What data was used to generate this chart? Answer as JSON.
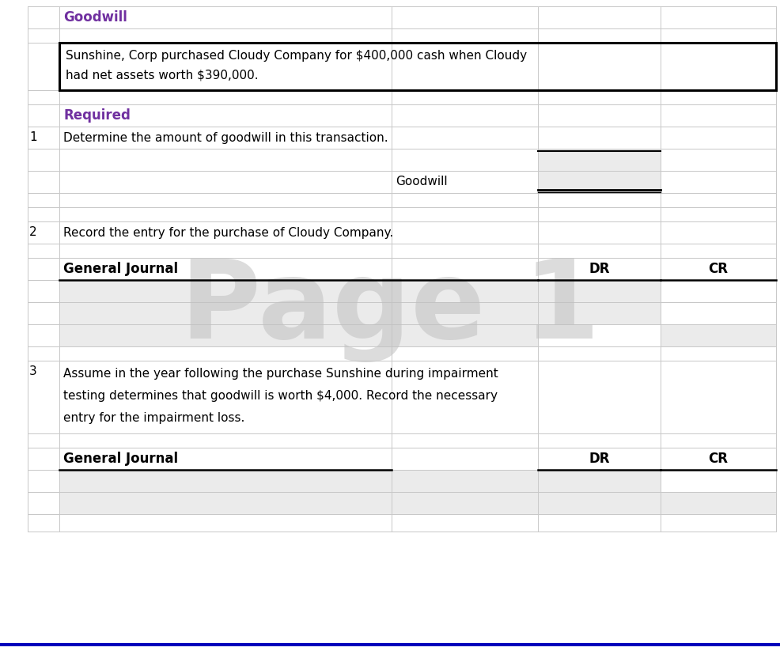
{
  "title": "Goodwill",
  "title_color": "#7030A0",
  "scenario_text": "Sunshine, Corp purchased Cloudy Company for $400,000 cash when Cloudy\nhad net assets worth $390,000.",
  "required_label": "Required",
  "required_color": "#7030A0",
  "q1_number": "1",
  "q1_text": "Determine the amount of goodwill in this transaction.",
  "q1_label": "Goodwill",
  "q2_number": "2",
  "q2_text": "Record the entry for the purchase of Cloudy Company.",
  "journal_header": "General Journal",
  "dr_header": "DR",
  "cr_header": "CR",
  "q3_number": "3",
  "q3_line1": "Assume in the year following the purchase Sunshine during impairment",
  "q3_line2": "testing determines that goodwill is worth $4,000. Record the necessary",
  "q3_line3": "entry for the impairment loss.",
  "page_watermark": "Page 1",
  "bg_color": "#ffffff",
  "grid_color": "#c8c8c8",
  "shaded_color": "#ebebeb",
  "border_color": "#000000",
  "bottom_border_color": "#0000bb",
  "fig_width": 9.86,
  "fig_height": 8.18
}
